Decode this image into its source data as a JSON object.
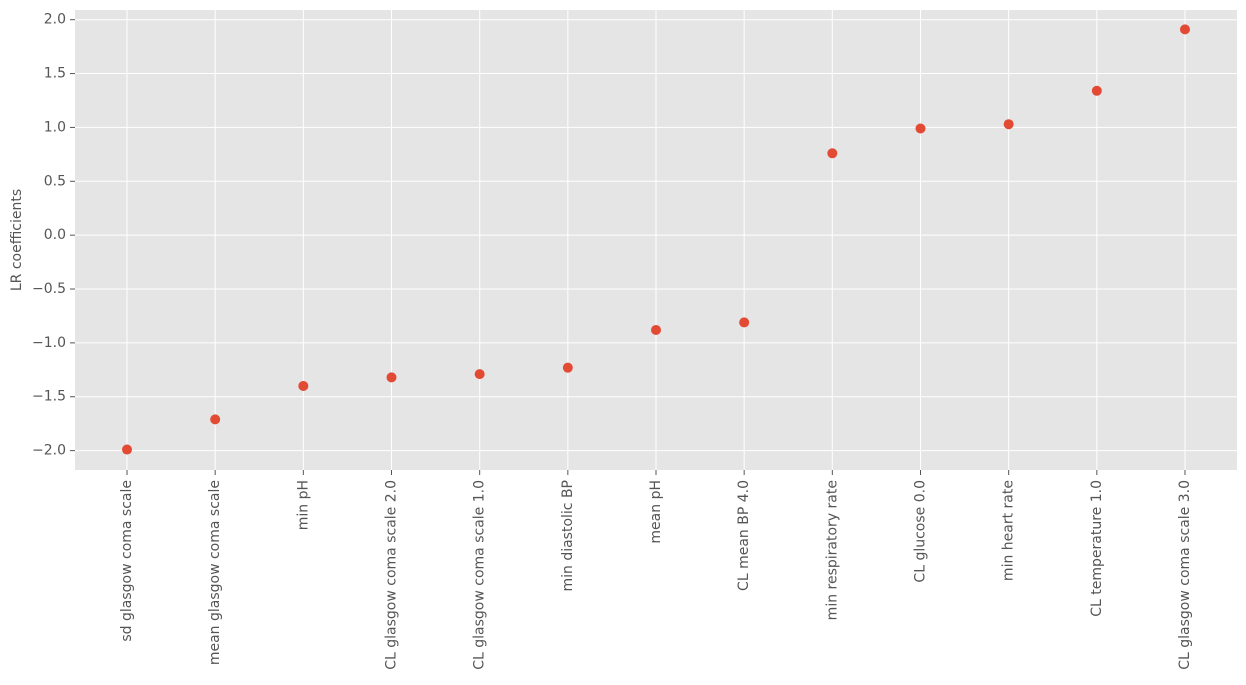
{
  "chart_data": {
    "type": "scatter",
    "y_label": "LR coefficients",
    "categories": [
      "sd glasgow coma scale",
      "mean glasgow coma scale",
      "min pH",
      "CL glasgow coma scale 2.0",
      "CL glasgow coma scale 1.0",
      "min diastolic BP",
      "mean pH",
      "CL mean BP 4.0",
      "min respiratory rate",
      "CL glucose 0.0",
      "min heart rate",
      "CL temperature 1.0",
      "CL glasgow coma scale 3.0"
    ],
    "values": [
      -1.99,
      -1.71,
      -1.4,
      -1.32,
      -1.29,
      -1.23,
      -0.88,
      -0.81,
      0.76,
      0.99,
      1.03,
      1.34,
      1.91
    ],
    "color": "#e24a33",
    "ylim": [
      -2.18,
      2.09
    ],
    "yticks": [
      {
        "value": -2,
        "label": "−2.0"
      },
      {
        "value": -1.5,
        "label": "−1.5"
      },
      {
        "value": -1,
        "label": "−1.0"
      },
      {
        "value": -0.5,
        "label": "−0.5"
      },
      {
        "value": 0,
        "label": "0.0"
      },
      {
        "value": 0.5,
        "label": "0.5"
      },
      {
        "value": 1,
        "label": "1.0"
      },
      {
        "value": 1.5,
        "label": "1.5"
      },
      {
        "value": 2,
        "label": "2.0"
      }
    ],
    "grid": true
  }
}
